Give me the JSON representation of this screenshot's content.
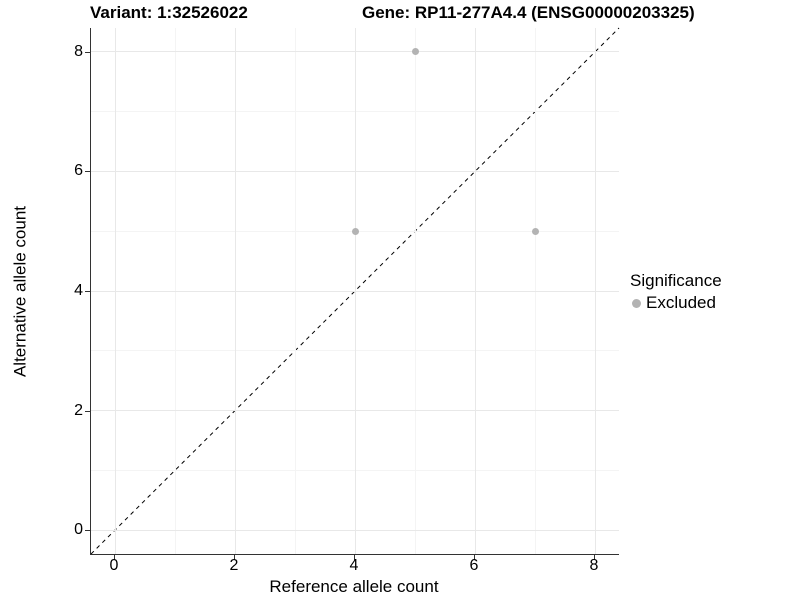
{
  "header": {
    "variant_title": "Variant: 1:32526022",
    "gene_title": "Gene: RP11-277A4.4 (ENSG00000203325)"
  },
  "chart_data": {
    "type": "scatter",
    "xlabel": "Reference allele count",
    "ylabel": "Alternative allele count",
    "xlim": [
      -0.4,
      8.4
    ],
    "ylim": [
      -0.4,
      8.4
    ],
    "x_major_ticks": [
      0,
      2,
      4,
      6,
      8
    ],
    "y_major_ticks": [
      0,
      2,
      4,
      6,
      8
    ],
    "x_minor_ticks": [
      1,
      3,
      5,
      7
    ],
    "y_minor_ticks": [
      1,
      3,
      5,
      7
    ],
    "grid": true,
    "identity_line": {
      "style": "dashed",
      "from": [
        -0.4,
        -0.4
      ],
      "to": [
        8.4,
        8.4
      ],
      "color": "#000000"
    },
    "series": [
      {
        "name": "Excluded",
        "color": "#b3b3b3",
        "points": [
          {
            "x": 5,
            "y": 8
          },
          {
            "x": 4,
            "y": 5
          },
          {
            "x": 7,
            "y": 5
          }
        ]
      }
    ]
  },
  "legend": {
    "title": "Significance",
    "position": "right",
    "items": [
      {
        "label": "Excluded",
        "color": "#b3b3b3"
      }
    ]
  },
  "colors": {
    "background": "#ffffff",
    "grid_major": "#e8e8e8",
    "grid_minor": "#f4f4f4",
    "axis_line": "#333333",
    "text": "#000000"
  }
}
